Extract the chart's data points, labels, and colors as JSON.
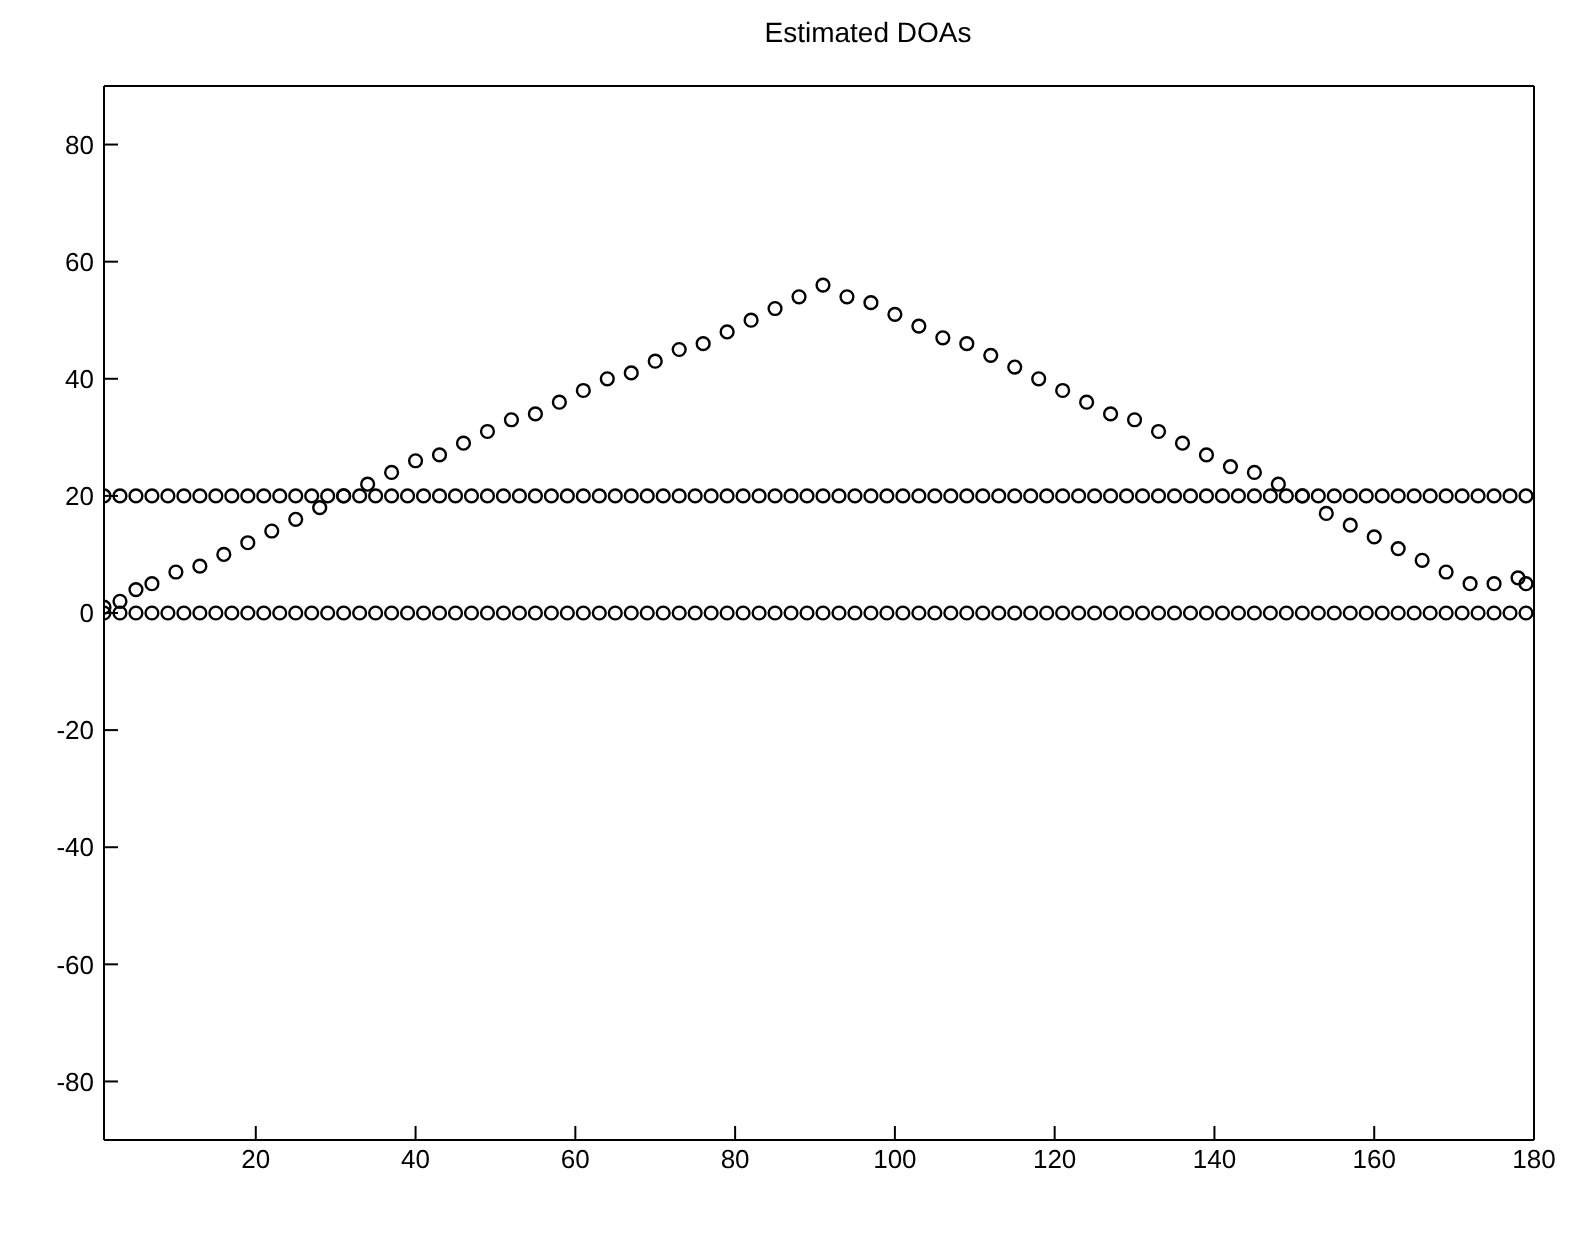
{
  "chart_data": {
    "type": "scatter",
    "title": "Estimated DOAs",
    "x": [
      1,
      3,
      5,
      7,
      9,
      11,
      13,
      15,
      17,
      19,
      21,
      23,
      25,
      27,
      29,
      31,
      33,
      35,
      37,
      39,
      41,
      43,
      45,
      47,
      49,
      51,
      53,
      55,
      57,
      59,
      61,
      63,
      65,
      67,
      69,
      71,
      73,
      75,
      77,
      79,
      81,
      83,
      85,
      87,
      89,
      91,
      93,
      95,
      97,
      99,
      101,
      103,
      105,
      107,
      109,
      111,
      113,
      115,
      117,
      119,
      121,
      123,
      125,
      127,
      129,
      131,
      133,
      135,
      137,
      139,
      141,
      143,
      145,
      147,
      149,
      151,
      153,
      155,
      157,
      159,
      161,
      163,
      165,
      167,
      169,
      171,
      173,
      175,
      177,
      179
    ],
    "series": [
      {
        "color": "#000000",
        "values": [
          20,
          20,
          20,
          20,
          20,
          20,
          20,
          20,
          20,
          20,
          20,
          20,
          20,
          20,
          20,
          20,
          20,
          20,
          20,
          20,
          20,
          20,
          20,
          20,
          20,
          20,
          20,
          20,
          20,
          20,
          20,
          20,
          20,
          20,
          20,
          20,
          20,
          20,
          20,
          20,
          20,
          20,
          20,
          20,
          20,
          20,
          20,
          20,
          20,
          20,
          20,
          20,
          20,
          20,
          20,
          20,
          20,
          20,
          20,
          20,
          20,
          20,
          20,
          20,
          20,
          20,
          20,
          20,
          20,
          20,
          20,
          20,
          20,
          20,
          20,
          20,
          20,
          20,
          20,
          20,
          20,
          20,
          20,
          20,
          20,
          20,
          20,
          20,
          20,
          20
        ]
      },
      {
        "color": "#000000",
        "values": [
          0,
          0,
          0,
          0,
          0,
          0,
          0,
          0,
          0,
          0,
          0,
          0,
          0,
          0,
          0,
          0,
          0,
          0,
          0,
          0,
          0,
          0,
          0,
          0,
          0,
          0,
          0,
          0,
          0,
          0,
          0,
          0,
          0,
          0,
          0,
          0,
          0,
          0,
          0,
          0,
          0,
          0,
          0,
          0,
          0,
          0,
          0,
          0,
          0,
          0,
          0,
          0,
          0,
          0,
          0,
          0,
          0,
          0,
          0,
          0,
          0,
          0,
          0,
          0,
          0,
          0,
          0,
          0,
          0,
          0,
          0,
          0,
          0,
          0,
          0,
          0,
          0,
          0,
          0,
          0,
          0,
          0,
          0,
          0,
          0,
          0,
          0,
          0,
          0,
          0
        ]
      },
      {
        "color": "#000000",
        "x": [
          1,
          3,
          5,
          7,
          10,
          13,
          16,
          19,
          22,
          25,
          28,
          31,
          34,
          37,
          40,
          43,
          46,
          49,
          52,
          55,
          58,
          61,
          64,
          67,
          70,
          73,
          76,
          79,
          82,
          85,
          88,
          91,
          94,
          97,
          100,
          103,
          106,
          109,
          112,
          115,
          118,
          121,
          124,
          127,
          130,
          133,
          136,
          139,
          142,
          145,
          148,
          151,
          154,
          157,
          160,
          163,
          166,
          169,
          172,
          175,
          178,
          179
        ],
        "values": [
          1,
          2,
          4,
          5,
          7,
          8,
          10,
          12,
          14,
          16,
          18,
          20,
          22,
          24,
          26,
          27,
          29,
          31,
          33,
          34,
          36,
          38,
          40,
          41,
          43,
          45,
          46,
          48,
          50,
          52,
          54,
          56,
          54,
          53,
          51,
          49,
          47,
          46,
          44,
          42,
          40,
          38,
          36,
          34,
          33,
          31,
          29,
          27,
          25,
          24,
          22,
          20,
          17,
          15,
          13,
          11,
          9,
          7,
          5,
          5,
          6,
          5
        ]
      }
    ],
    "xlim": [
      1,
      180
    ],
    "xticks": [
      20,
      40,
      60,
      80,
      100,
      120,
      140,
      160,
      180
    ],
    "ylim": [
      -90,
      90
    ],
    "yticks": [
      -80,
      -60,
      -40,
      -20,
      0,
      20,
      40,
      60,
      80
    ],
    "marker": "circle",
    "legend": false
  }
}
